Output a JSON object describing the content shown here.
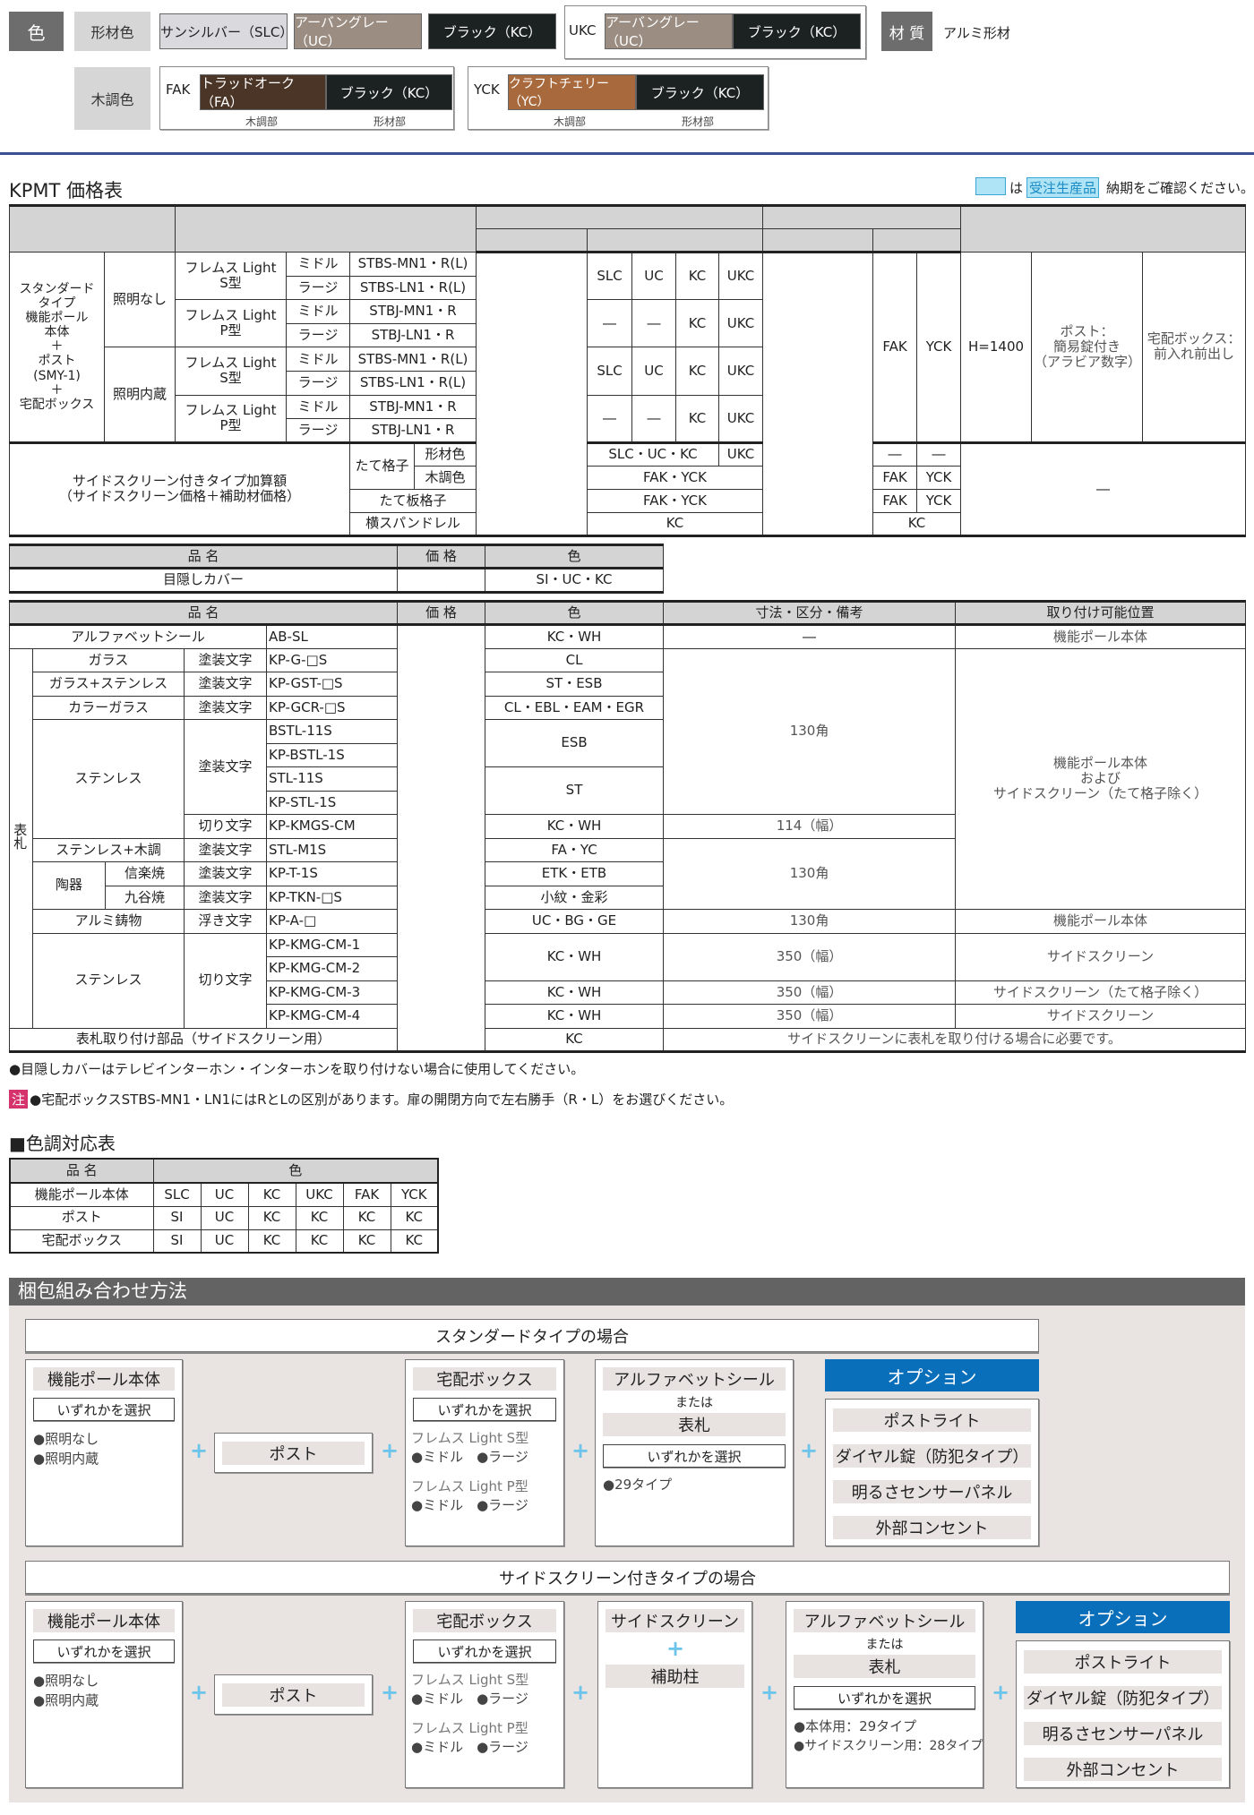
{
  "colors": {
    "label": "色",
    "extrusion_label": "形材色",
    "wood_label": "木調色",
    "slc": "サンシルバー（SLC）",
    "uc": "アーバングレー（UC）",
    "kc": "ブラック（KC）",
    "ukc": {
      "code": "UKC",
      "a": "アーバングレー（UC）",
      "b": "ブラック（KC）"
    },
    "fak": {
      "code": "FAK",
      "a": "トラッドオーク（FA）",
      "b": "ブラック（KC）",
      "sub_a": "木調部",
      "sub_b": "形材部"
    },
    "yck": {
      "code": "YCK",
      "a": "クラフトチェリー（YC）",
      "b": "ブラック（KC）",
      "sub_a": "木調部",
      "sub_b": "形材部"
    },
    "material_label": "材 質",
    "material": "アルミ形材",
    "hex": {
      "slc": "#d9d9de",
      "uc": "#9b8d82",
      "kc": "#1c2121",
      "fa": "#4b3526",
      "yc": "#a86a3c",
      "rule": "#3a4f94",
      "option": "#0a6fba",
      "plus": "#6cc4ea",
      "made_to_order": "#aee4f5"
    }
  },
  "price": {
    "title": "KPMT 価格表",
    "legend": {
      "is": "は",
      "tag": "受注生産品",
      "text": "納期をご確認ください。"
    }
  },
  "t1": {
    "h": "H=1400",
    "std": "スタンダード\nタイプ\n機能ポール\n本体\n＋\nポスト\n(SMY-1)\n＋\n宅配ボックス",
    "nolight": "照明なし",
    "light": "照明内蔵",
    "s": "フレムス Light\nS型",
    "p": "フレムス Light\nP型",
    "mid": "ミドル",
    "large": "ラージ",
    "m1": "STBS-MN1・R(L)",
    "m2": "STBS-LN1・R(L)",
    "m3": "STBJ-MN1・R",
    "m4": "STBJ-LN1・R",
    "slc": "SLC",
    "uc": "UC",
    "kc": "KC",
    "ukc": "UKC",
    "dash": "―",
    "fak": "FAK",
    "yck": "YCK",
    "post": "ポスト：\n簡易錠付き\n（アラビア数字）",
    "boxnote": "宅配ボックス：\n前入れ前出し",
    "side": "サイドスクリーン付きタイプ加算額\n（サイドスクリーン価格＋補助材価格）",
    "tate": "たて格子",
    "ext": "形材色",
    "wood": "木調色",
    "itaku": "たて板格子",
    "span": "横スパンドレル",
    "c1": "SLC・UC・KC",
    "c2": "FAK・YCK",
    "c3": "FAK・YCK",
    "c4": "KC",
    "w4": "KC"
  },
  "t2": {
    "h": {
      "name": "品 名",
      "price": "価 格",
      "color": "色"
    },
    "name": "目隠しカバー",
    "color": "SI・UC・KC"
  },
  "t3": {
    "h": {
      "name": "品 名",
      "price": "価 格",
      "color": "色",
      "spec": "寸法・区分・備考",
      "pos": "取り付け可能位置"
    },
    "plate": "表札",
    "paint": "塗装文字",
    "cut": "切り文字",
    "relief": "浮き文字",
    "rows": {
      "ab": {
        "name": "アルファベットシール",
        "model": "AB-SL",
        "color": "KC・WH",
        "spec": "―",
        "pos": "機能ポール本体"
      },
      "glass": {
        "name": "ガラス",
        "model": "KP-G-□S",
        "color": "CL"
      },
      "gst": {
        "name": "ガラス+ステンレス",
        "model": "KP-GST-□S",
        "color": "ST・ESB"
      },
      "gcr": {
        "name": "カラーガラス",
        "model": "KP-GCR-□S",
        "color": "CL・EBL・EAM・EGR"
      },
      "stl": {
        "name": "ステンレス",
        "m1": "BSTL-11S",
        "m2": "KP-BSTL-1S",
        "m3": "STL-11S",
        "m4": "KP-STL-1S",
        "m5": "KP-KMGS-CM",
        "c1": "ESB",
        "c2": "ST",
        "c3": "KC・WH",
        "s5": "114（幅）"
      },
      "size130": "130角",
      "pos_main": "機能ポール本体\nおよび\nサイドスクリーン（たて格子除く）",
      "stw": {
        "name": "ステンレス+木調",
        "model": "STL-M1S",
        "color": "FA・YC"
      },
      "ceramic": "陶器",
      "shigaraki": {
        "name": "信楽焼",
        "model": "KP-T-1S",
        "color": "ETK・ETB"
      },
      "kutani": {
        "name": "九谷焼",
        "model": "KP-TKN-□S",
        "color": "小紋・金彩"
      },
      "alu": {
        "name": "アルミ鋳物",
        "model": "KP-A-□",
        "color": "UC・BG・GE",
        "spec": "130角",
        "pos": "機能ポール本体"
      },
      "kmg": {
        "name": "ステンレス",
        "m1": "KP-KMG-CM-1",
        "m2": "KP-KMG-CM-2",
        "m3": "KP-KMG-CM-3",
        "m4": "KP-KMG-CM-4",
        "color": "KC・WH",
        "spec": "350（幅）",
        "pos1": "サイドスクリーン",
        "pos2": "サイドスクリーン（たて格子除く）",
        "pos3": "サイドスクリーン"
      },
      "mount": {
        "name": "表札取り付け部品（サイドスクリーン用）",
        "color": "KC",
        "spec": "サイドスクリーンに表札を取り付ける場合に必要です。"
      }
    }
  },
  "notes": {
    "n1": "●目隠しカバーはテレビインターホン・インターホンを取り付けない場合に使用してください。",
    "chu": "注",
    "n2": "●宅配ボックスSTBS-MN1・LN1にはRとLの区別があります。扉の開閉方向で左右勝手（R・L）をお選びください。"
  },
  "tone": {
    "title": "■色調対応表",
    "h": {
      "name": "品 名",
      "color": "色"
    },
    "rows": [
      {
        "name": "機能ポール本体",
        "c": [
          "SLC",
          "UC",
          "KC",
          "UKC",
          "FAK",
          "YCK"
        ]
      },
      {
        "name": "ポスト",
        "c": [
          "SI",
          "UC",
          "KC",
          "KC",
          "KC",
          "KC"
        ]
      },
      {
        "name": "宅配ボックス",
        "c": [
          "SI",
          "UC",
          "KC",
          "KC",
          "KC",
          "KC"
        ]
      }
    ]
  },
  "pack": {
    "title": "梱包組み合わせ方法",
    "std_banner": "スタンダードタイプの場合",
    "side_banner": "サイドスクリーン付きタイプの場合",
    "plus": "+",
    "pole": {
      "title": "機能ポール本体",
      "select": "いずれかを選択",
      "o1": "●照明なし",
      "o2": "●照明内蔵"
    },
    "post": "ポスト",
    "box": {
      "title": "宅配ボックス",
      "select": "いずれかを選択",
      "s": "フレムス Light S型",
      "p": "フレムス Light P型",
      "sizes": "●ミドル　●ラージ"
    },
    "alpha": {
      "title": "アルファベットシール",
      "or": "または",
      "plate": "表札",
      "select": "いずれかを選択",
      "std_note": "●29タイプ",
      "side_n1": "●本体用：29タイプ",
      "side_n2": "●サイドスクリーン用：28タイプ"
    },
    "screen": {
      "title": "サイドスクリーン",
      "aux": "補助柱"
    },
    "option": {
      "title": "オプション",
      "items": [
        "ポストライト",
        "ダイヤル錠（防犯タイプ）",
        "明るさセンサーパネル",
        "外部コンセント"
      ]
    }
  }
}
